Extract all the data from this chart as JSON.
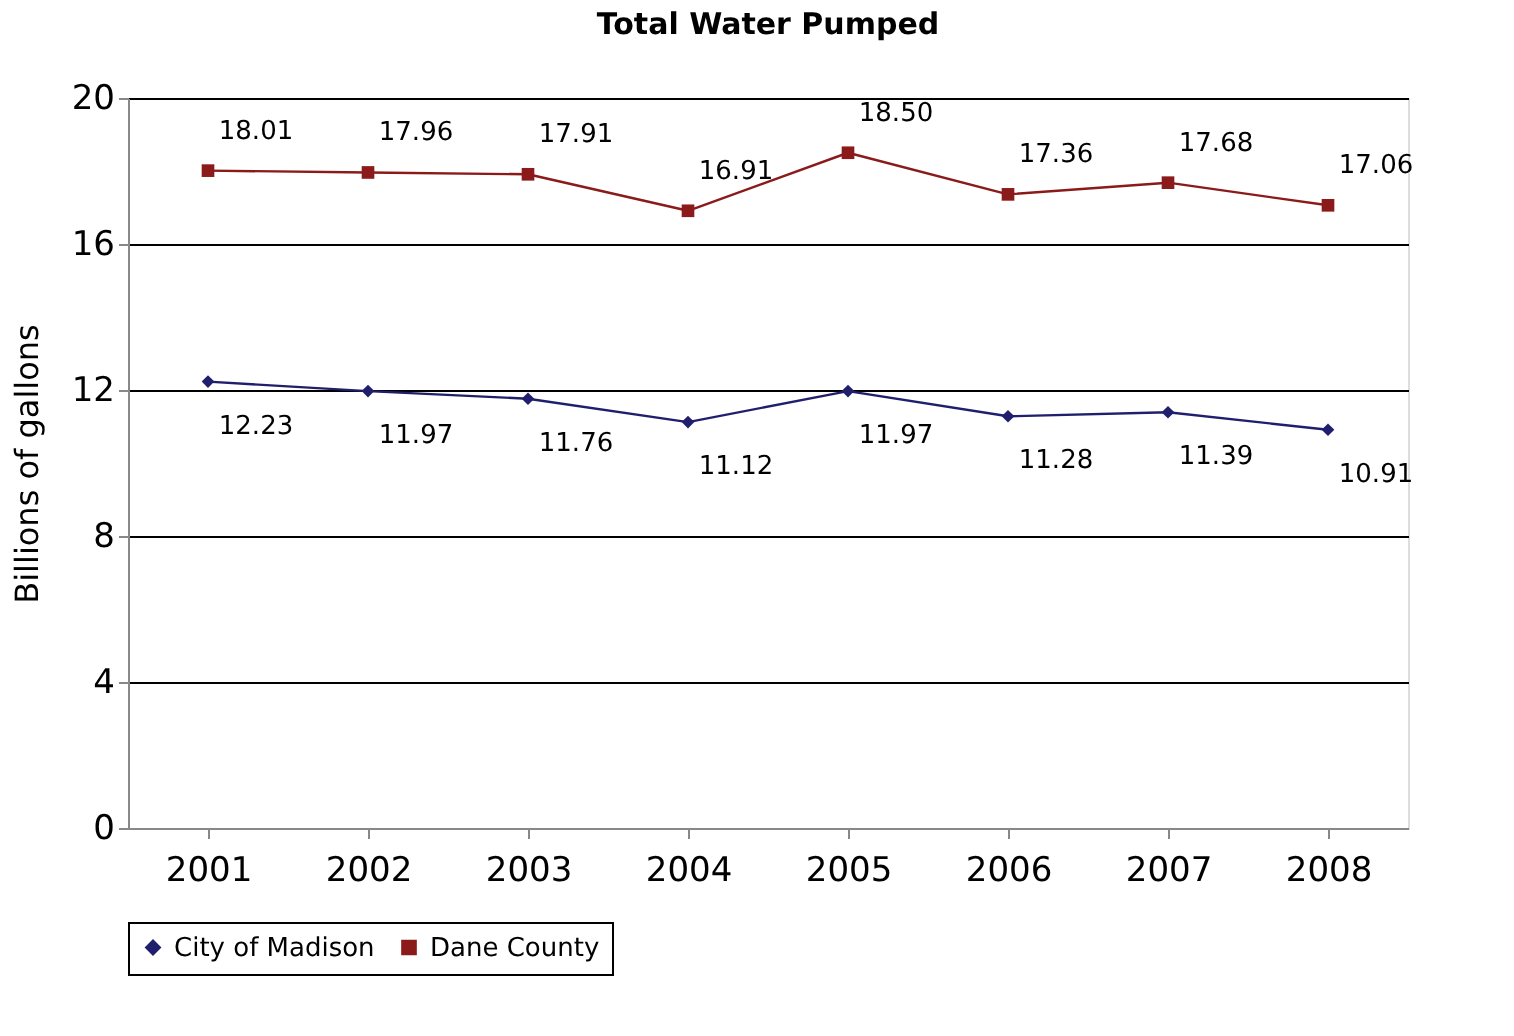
{
  "chart_data": {
    "type": "line",
    "title": "Total Water Pumped",
    "ylabel": "Billions of gallons",
    "categories": [
      "2001",
      "2002",
      "2003",
      "2004",
      "2005",
      "2006",
      "2007",
      "2008"
    ],
    "series": [
      {
        "name": "City of Madison",
        "color": "#1f1f6e",
        "marker": "diamond",
        "values": [
          12.23,
          11.97,
          11.76,
          11.12,
          11.97,
          11.28,
          11.39,
          10.91
        ],
        "value_labels": [
          "12.23",
          "11.97",
          "11.76",
          "11.12",
          "11.97",
          "11.28",
          "11.39",
          "10.91"
        ]
      },
      {
        "name": "Dane County",
        "color": "#8b1a1a",
        "marker": "square",
        "values": [
          18.01,
          17.96,
          17.91,
          16.91,
          18.5,
          17.36,
          17.68,
          17.06
        ],
        "value_labels": [
          "18.01",
          "17.96",
          "17.91",
          "16.91",
          "18.50",
          "17.36",
          "17.68",
          "17.06"
        ]
      }
    ],
    "ylim": [
      0,
      20
    ],
    "yticks": [
      0,
      4,
      8,
      12,
      16,
      20
    ],
    "grid": "y",
    "legend": "bottom",
    "line_style": "solid"
  }
}
